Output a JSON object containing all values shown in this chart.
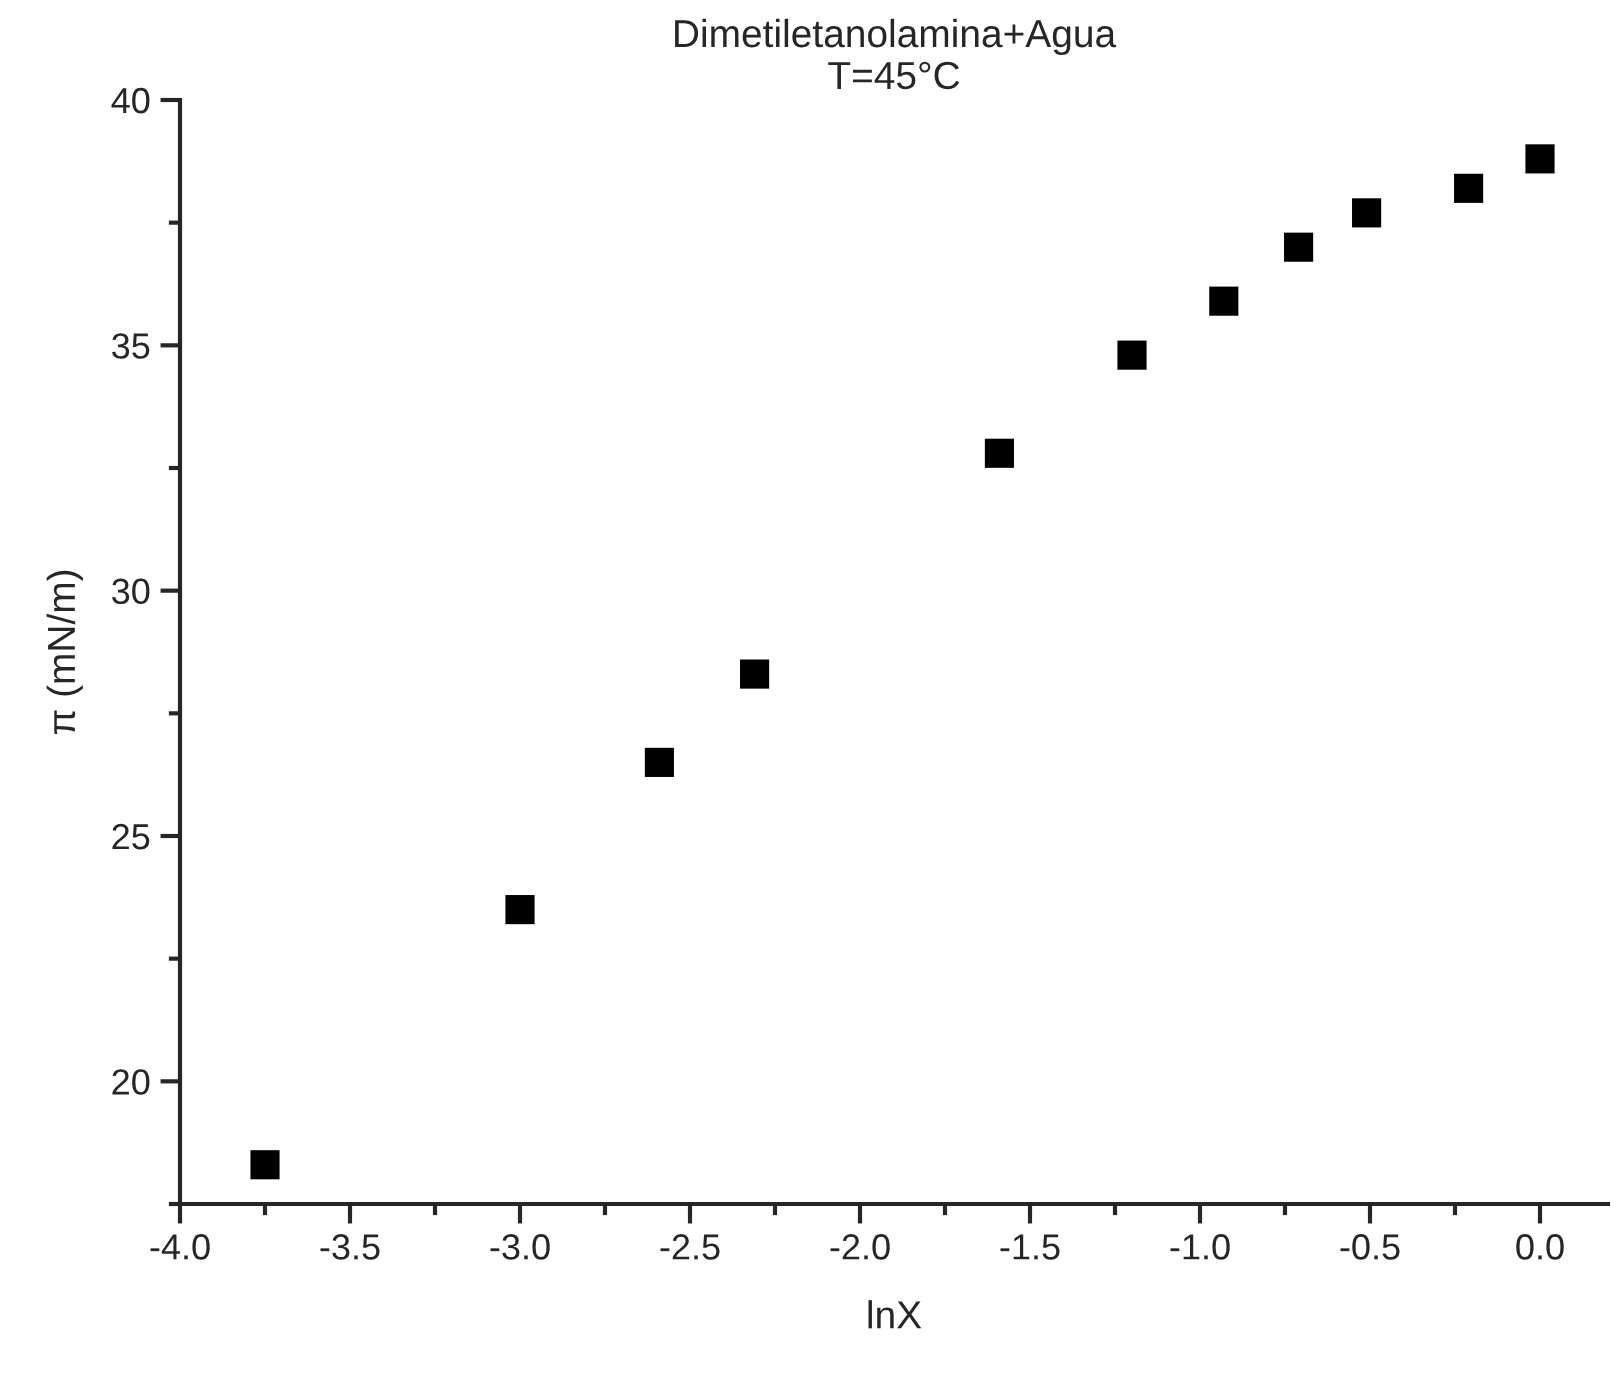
{
  "chart_data": {
    "type": "scatter",
    "title": "Dimetiletanolamina+Agua\nT=45°C",
    "xlabel": "lnX",
    "ylabel": "π (mN/m)",
    "x": [
      -3.75,
      -3.0,
      -2.59,
      -2.31,
      -1.59,
      -1.2,
      -0.93,
      -0.71,
      -0.51,
      -0.21,
      0.0
    ],
    "series": [
      {
        "color": "#000000",
        "values": [
          18.3,
          23.5,
          26.5,
          28.3,
          32.8,
          34.8,
          35.9,
          37.0,
          37.7,
          38.2,
          38.8
        ]
      }
    ],
    "xlim": [
      -4.0,
      0.2
    ],
    "ylim": [
      17.5,
      40
    ],
    "xticks": [
      {
        "value": -4.0,
        "label": "-4.0"
      },
      {
        "value": -3.5,
        "label": "-3.5"
      },
      {
        "value": -3.0,
        "label": "-3.0"
      },
      {
        "value": -2.5,
        "label": "-2.5"
      },
      {
        "value": -2.0,
        "label": "-2.0"
      },
      {
        "value": -1.5,
        "label": "-1.5"
      },
      {
        "value": -1.0,
        "label": "-1.0"
      },
      {
        "value": -0.5,
        "label": "-0.5"
      },
      {
        "value": 0.0,
        "label": "0.0"
      }
    ],
    "yticks": [
      20,
      25,
      30,
      35,
      40
    ],
    "marker": "square",
    "grid": false,
    "legend": false
  }
}
